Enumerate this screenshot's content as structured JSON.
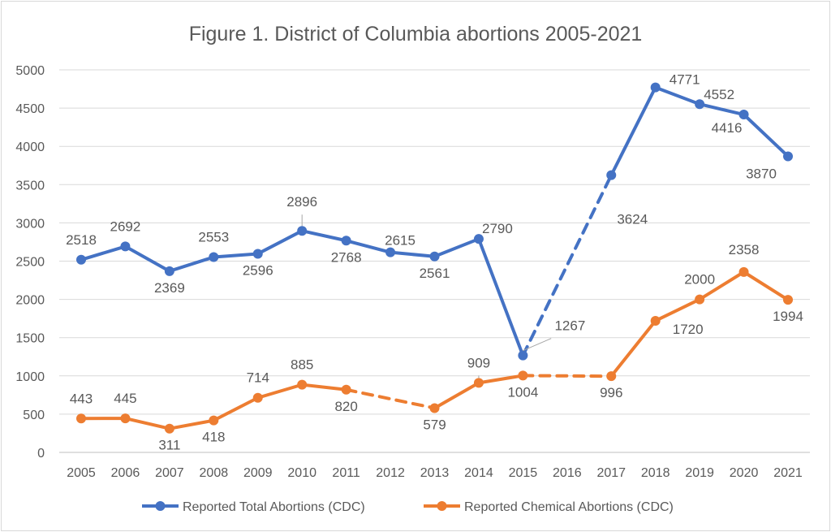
{
  "chart_data": {
    "type": "line",
    "title": "Figure 1. District of Columbia abortions 2005-2021",
    "xlabel": "",
    "ylabel": "",
    "ylim": [
      0,
      5000
    ],
    "yticks": [
      "0",
      "500",
      "1000",
      "1500",
      "2000",
      "2500",
      "3000",
      "3500",
      "4000",
      "4500",
      "5000"
    ],
    "categories": [
      "2005",
      "2006",
      "2007",
      "2008",
      "2009",
      "2010",
      "2011",
      "2012",
      "2013",
      "2014",
      "2015",
      "2016",
      "2017",
      "2018",
      "2019",
      "2020",
      "2021"
    ],
    "grid": true,
    "legend_position": "bottom",
    "series": [
      {
        "name": "Reported Total Abortions (CDC)",
        "color": "#4472C4",
        "values": [
          2518,
          2692,
          2369,
          2553,
          2596,
          2896,
          2768,
          2615,
          2561,
          2790,
          1267,
          null,
          3624,
          4771,
          4552,
          4416,
          3870
        ]
      },
      {
        "name": "Reported Chemical Abortions (CDC)",
        "color": "#ED7D31",
        "values": [
          443,
          445,
          311,
          418,
          714,
          885,
          820,
          null,
          579,
          909,
          1004,
          null,
          996,
          1720,
          2000,
          2358,
          1994
        ]
      }
    ],
    "gaps_drawn_dashed": true
  }
}
